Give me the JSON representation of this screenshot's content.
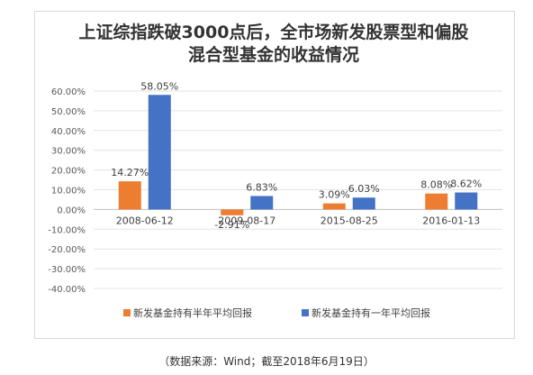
{
  "chart_data": {
    "type": "bar",
    "title_lines": [
      "上证综指跌破3000点后，全市场新发股票型和偏股",
      "混合型基金的收益情况"
    ],
    "categories": [
      "2008-06-12",
      "2009-08-17",
      "2015-08-25",
      "2016-01-13"
    ],
    "series": [
      {
        "name": "新发基金持有半年平均回报",
        "values": [
          14.27,
          -2.91,
          3.09,
          8.08
        ],
        "labels": [
          "14.27%",
          "-2.91%",
          "3.09%",
          "8.08%"
        ],
        "color": "#ed7d31"
      },
      {
        "name": "新发基金持有一年平均回报",
        "values": [
          58.05,
          6.83,
          6.03,
          8.62
        ],
        "labels": [
          "58.05%",
          "6.83%",
          "6.03%",
          "8.62%"
        ],
        "color": "#4472c4"
      }
    ],
    "ylim": [
      -40,
      60
    ],
    "yticks": [
      60,
      50,
      40,
      30,
      20,
      10,
      0,
      -10,
      -20,
      -30,
      -40
    ],
    "ytick_labels": [
      "60.00%",
      "50.00%",
      "40.00%",
      "30.00%",
      "20.00%",
      "10.00%",
      "0.00%",
      "-10.00%",
      "-20.00%",
      "-30.00%",
      "-40.00%"
    ],
    "grid": true,
    "legend_position": "bottom"
  },
  "source_note": "（数据来源：Wind；截至2018年6月19日）"
}
